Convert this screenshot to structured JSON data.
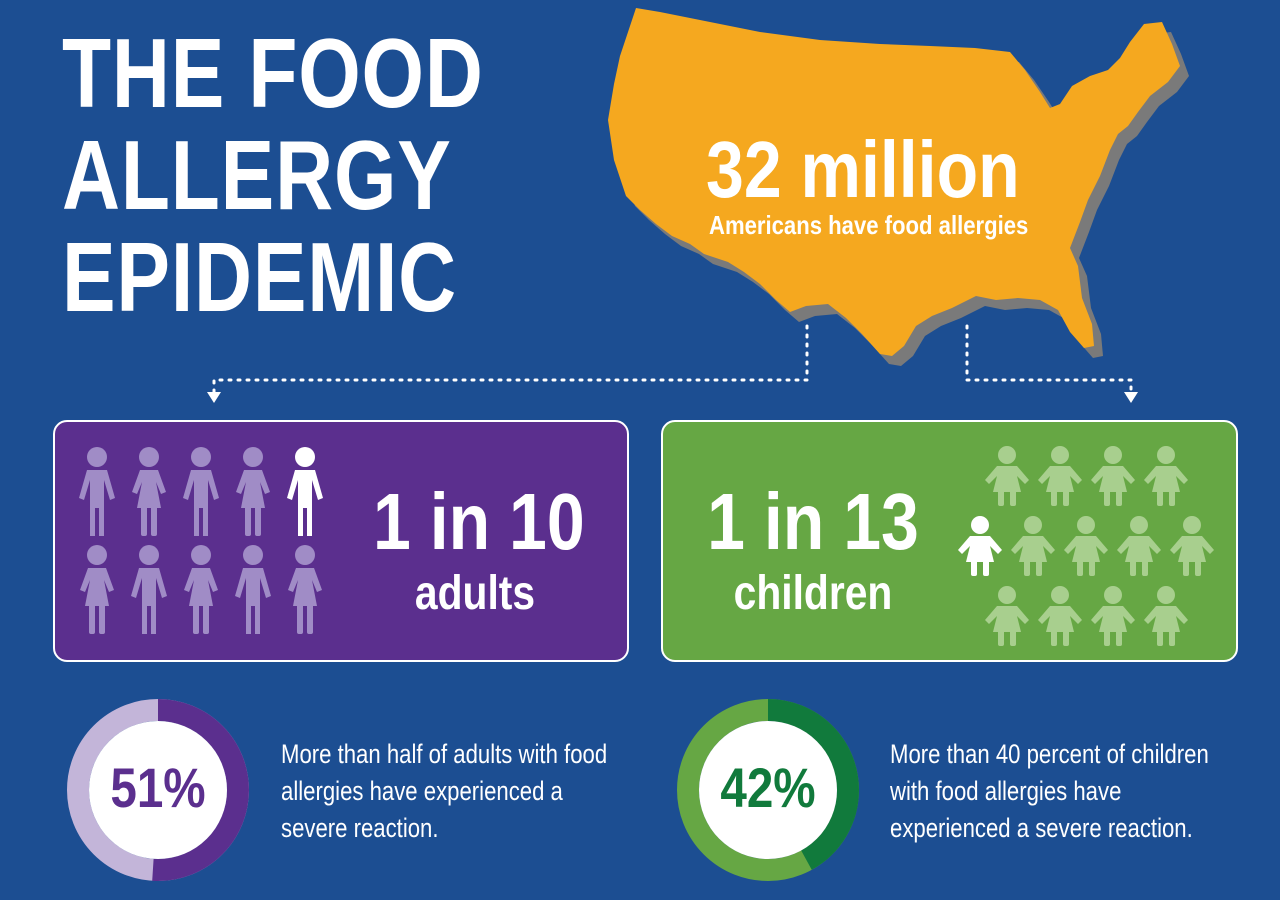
{
  "title": {
    "line1": "THE FOOD",
    "line2": "ALLERGY",
    "line3": "EPIDEMIC"
  },
  "headline": {
    "number": "32 million",
    "caption": "Americans have food allergies"
  },
  "adults": {
    "ratio": "1 in 10",
    "label": "adults",
    "total_icons": 10,
    "highlighted_icons": 1,
    "stat_percent": "51%",
    "stat_fraction": 0.51,
    "stat_text": "More than half of adults with food allergies have experienced a severe reaction."
  },
  "children": {
    "ratio": "1 in 13",
    "label": "children",
    "total_icons": 13,
    "highlighted_icons": 1,
    "stat_percent": "42%",
    "stat_fraction": 0.42,
    "stat_text": "More than 40 percent of children with food allergies have experienced a severe reaction."
  },
  "colors": {
    "background": "#1c4e92",
    "map": "#f5a81f",
    "adults": "#5b2f8e",
    "adults_light": "#c3b5d9",
    "children": "#66a744",
    "children_dark": "#117a3c"
  },
  "icons": {
    "map": "usa-map-icon",
    "adult_person": "person-icon",
    "child_person": "child-icon"
  }
}
